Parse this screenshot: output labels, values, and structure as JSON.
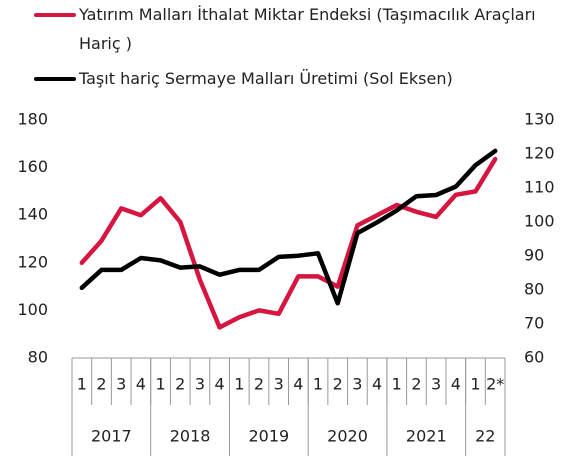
{
  "chart_data": {
    "type": "line",
    "categories": [
      "1",
      "2",
      "3",
      "4",
      "1",
      "2",
      "3",
      "4",
      "1",
      "2",
      "3",
      "4",
      "1",
      "2",
      "3",
      "4",
      "1",
      "2",
      "3",
      "4",
      "1",
      "2*"
    ],
    "category_groups": [
      {
        "label": "2017",
        "span": 4
      },
      {
        "label": "2018",
        "span": 4
      },
      {
        "label": "2019",
        "span": 4
      },
      {
        "label": "2020",
        "span": 4
      },
      {
        "label": "2021",
        "span": 4
      },
      {
        "label": "22",
        "span": 2
      }
    ],
    "series": [
      {
        "name": "Yatırım Malları İthalat Miktar Endeksi (Taşımacılık Araçları Hariç )",
        "color": "#d6163f",
        "axis": "y2",
        "values": [
          88,
          94.5,
          104,
          102,
          107,
          100,
          83,
          69,
          72,
          74,
          73,
          84,
          84,
          81,
          99,
          102,
          105,
          103,
          101.5,
          108,
          109,
          118.5
        ]
      },
      {
        "name": "Taşıt hariç Sermaye Malları Üretimi (Sol Eksen)",
        "color": "#000000",
        "axis": "y",
        "values": [
          109.5,
          117,
          117,
          122,
          121,
          118,
          118.5,
          115,
          117,
          117,
          122.5,
          123,
          124,
          103,
          132.5,
          137,
          142,
          148,
          148.5,
          152,
          161,
          167
        ]
      }
    ],
    "ylim": [
      80,
      180
    ],
    "yticks": [
      80,
      100,
      120,
      140,
      160,
      180
    ],
    "y2lim": [
      60,
      130
    ],
    "y2ticks": [
      60,
      70,
      80,
      90,
      100,
      110,
      120,
      130
    ]
  }
}
